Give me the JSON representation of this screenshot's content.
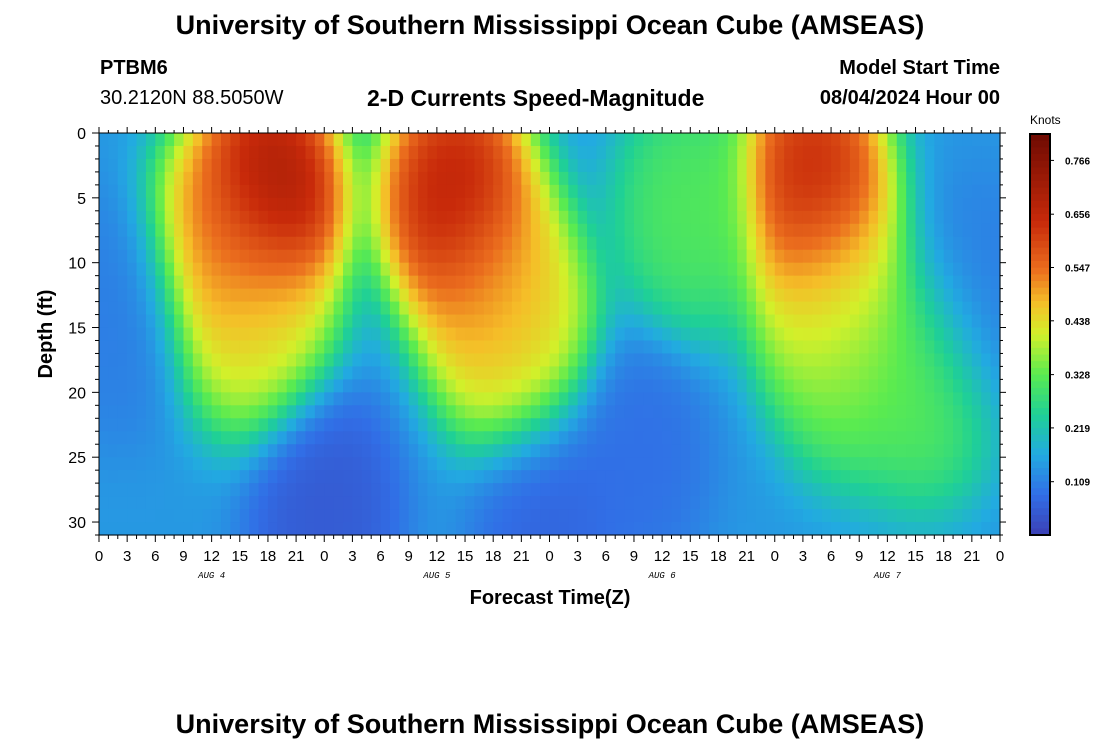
{
  "header": {
    "title": "University of Southern Mississippi Ocean Cube (AMSEAS)",
    "station": "PTBM6",
    "coords": "30.2120N  88.5050W",
    "subtitle": "2-D Currents Speed-Magnitude",
    "model_start_label": "Model Start Time",
    "model_start_value": "08/04/2024 Hour 00"
  },
  "footer": {
    "title": "University of Southern Mississippi Ocean Cube (AMSEAS)"
  },
  "colors": {
    "low": "#3b3fb5",
    "mid": "#1fd06a",
    "yellow": "#e3f02a",
    "high": "#c82a08",
    "max": "#6e0a02"
  },
  "chart_data": {
    "type": "heatmap",
    "xlabel": "Forecast Time(Z)",
    "ylabel": "Depth (ft)",
    "x_tick_labels": [
      "0",
      "3",
      "6",
      "9",
      "12",
      "15",
      "18",
      "21",
      "0",
      "3",
      "6",
      "9",
      "12",
      "15",
      "18",
      "21",
      "0",
      "3",
      "6",
      "9",
      "12",
      "15",
      "18",
      "21",
      "0",
      "3",
      "6",
      "9",
      "12",
      "15",
      "18",
      "21",
      "0"
    ],
    "day_labels": [
      "AUG 4",
      "AUG 5",
      "AUG 6",
      "AUG 7"
    ],
    "y_ticks": [
      0,
      5,
      10,
      15,
      20,
      25,
      30
    ],
    "ylim": [
      31,
      0
    ],
    "xlim_hours": [
      0,
      96
    ],
    "colorbar": {
      "label": "Knots",
      "ticks": [
        "0.766",
        "0.656",
        "0.547",
        "0.438",
        "0.328",
        "0.219",
        "0.109"
      ],
      "range": [
        0,
        0.82
      ]
    },
    "features": [
      {
        "hour": 18,
        "depth": 5,
        "speed": 0.78
      },
      {
        "hour": 13,
        "depth": 9,
        "speed": 0.55
      },
      {
        "hour": 17,
        "depth": 14,
        "speed": 0.45
      },
      {
        "hour": 38,
        "depth": 5,
        "speed": 0.72
      },
      {
        "hour": 42,
        "depth": 12,
        "speed": 0.55
      },
      {
        "hour": 45,
        "depth": 16,
        "speed": 0.45
      },
      {
        "hour": 76,
        "depth": 4,
        "speed": 0.7
      },
      {
        "hour": 78,
        "depth": 12,
        "speed": 0.5
      },
      {
        "hour": 80,
        "depth": 17,
        "speed": 0.35
      },
      {
        "hour": 63,
        "depth": 6,
        "speed": 0.33
      },
      {
        "hour": 88,
        "depth": 19,
        "speed": 0.34
      },
      {
        "hour": 24,
        "depth": 29,
        "speed": 0.04
      },
      {
        "hour": 48,
        "depth": 29,
        "speed": 0.06
      },
      {
        "hour": 57,
        "depth": 25,
        "speed": 0.08
      },
      {
        "hour": 2,
        "depth": 14,
        "speed": 0.1
      },
      {
        "hour": 94,
        "depth": 13,
        "speed": 0.1
      }
    ]
  }
}
